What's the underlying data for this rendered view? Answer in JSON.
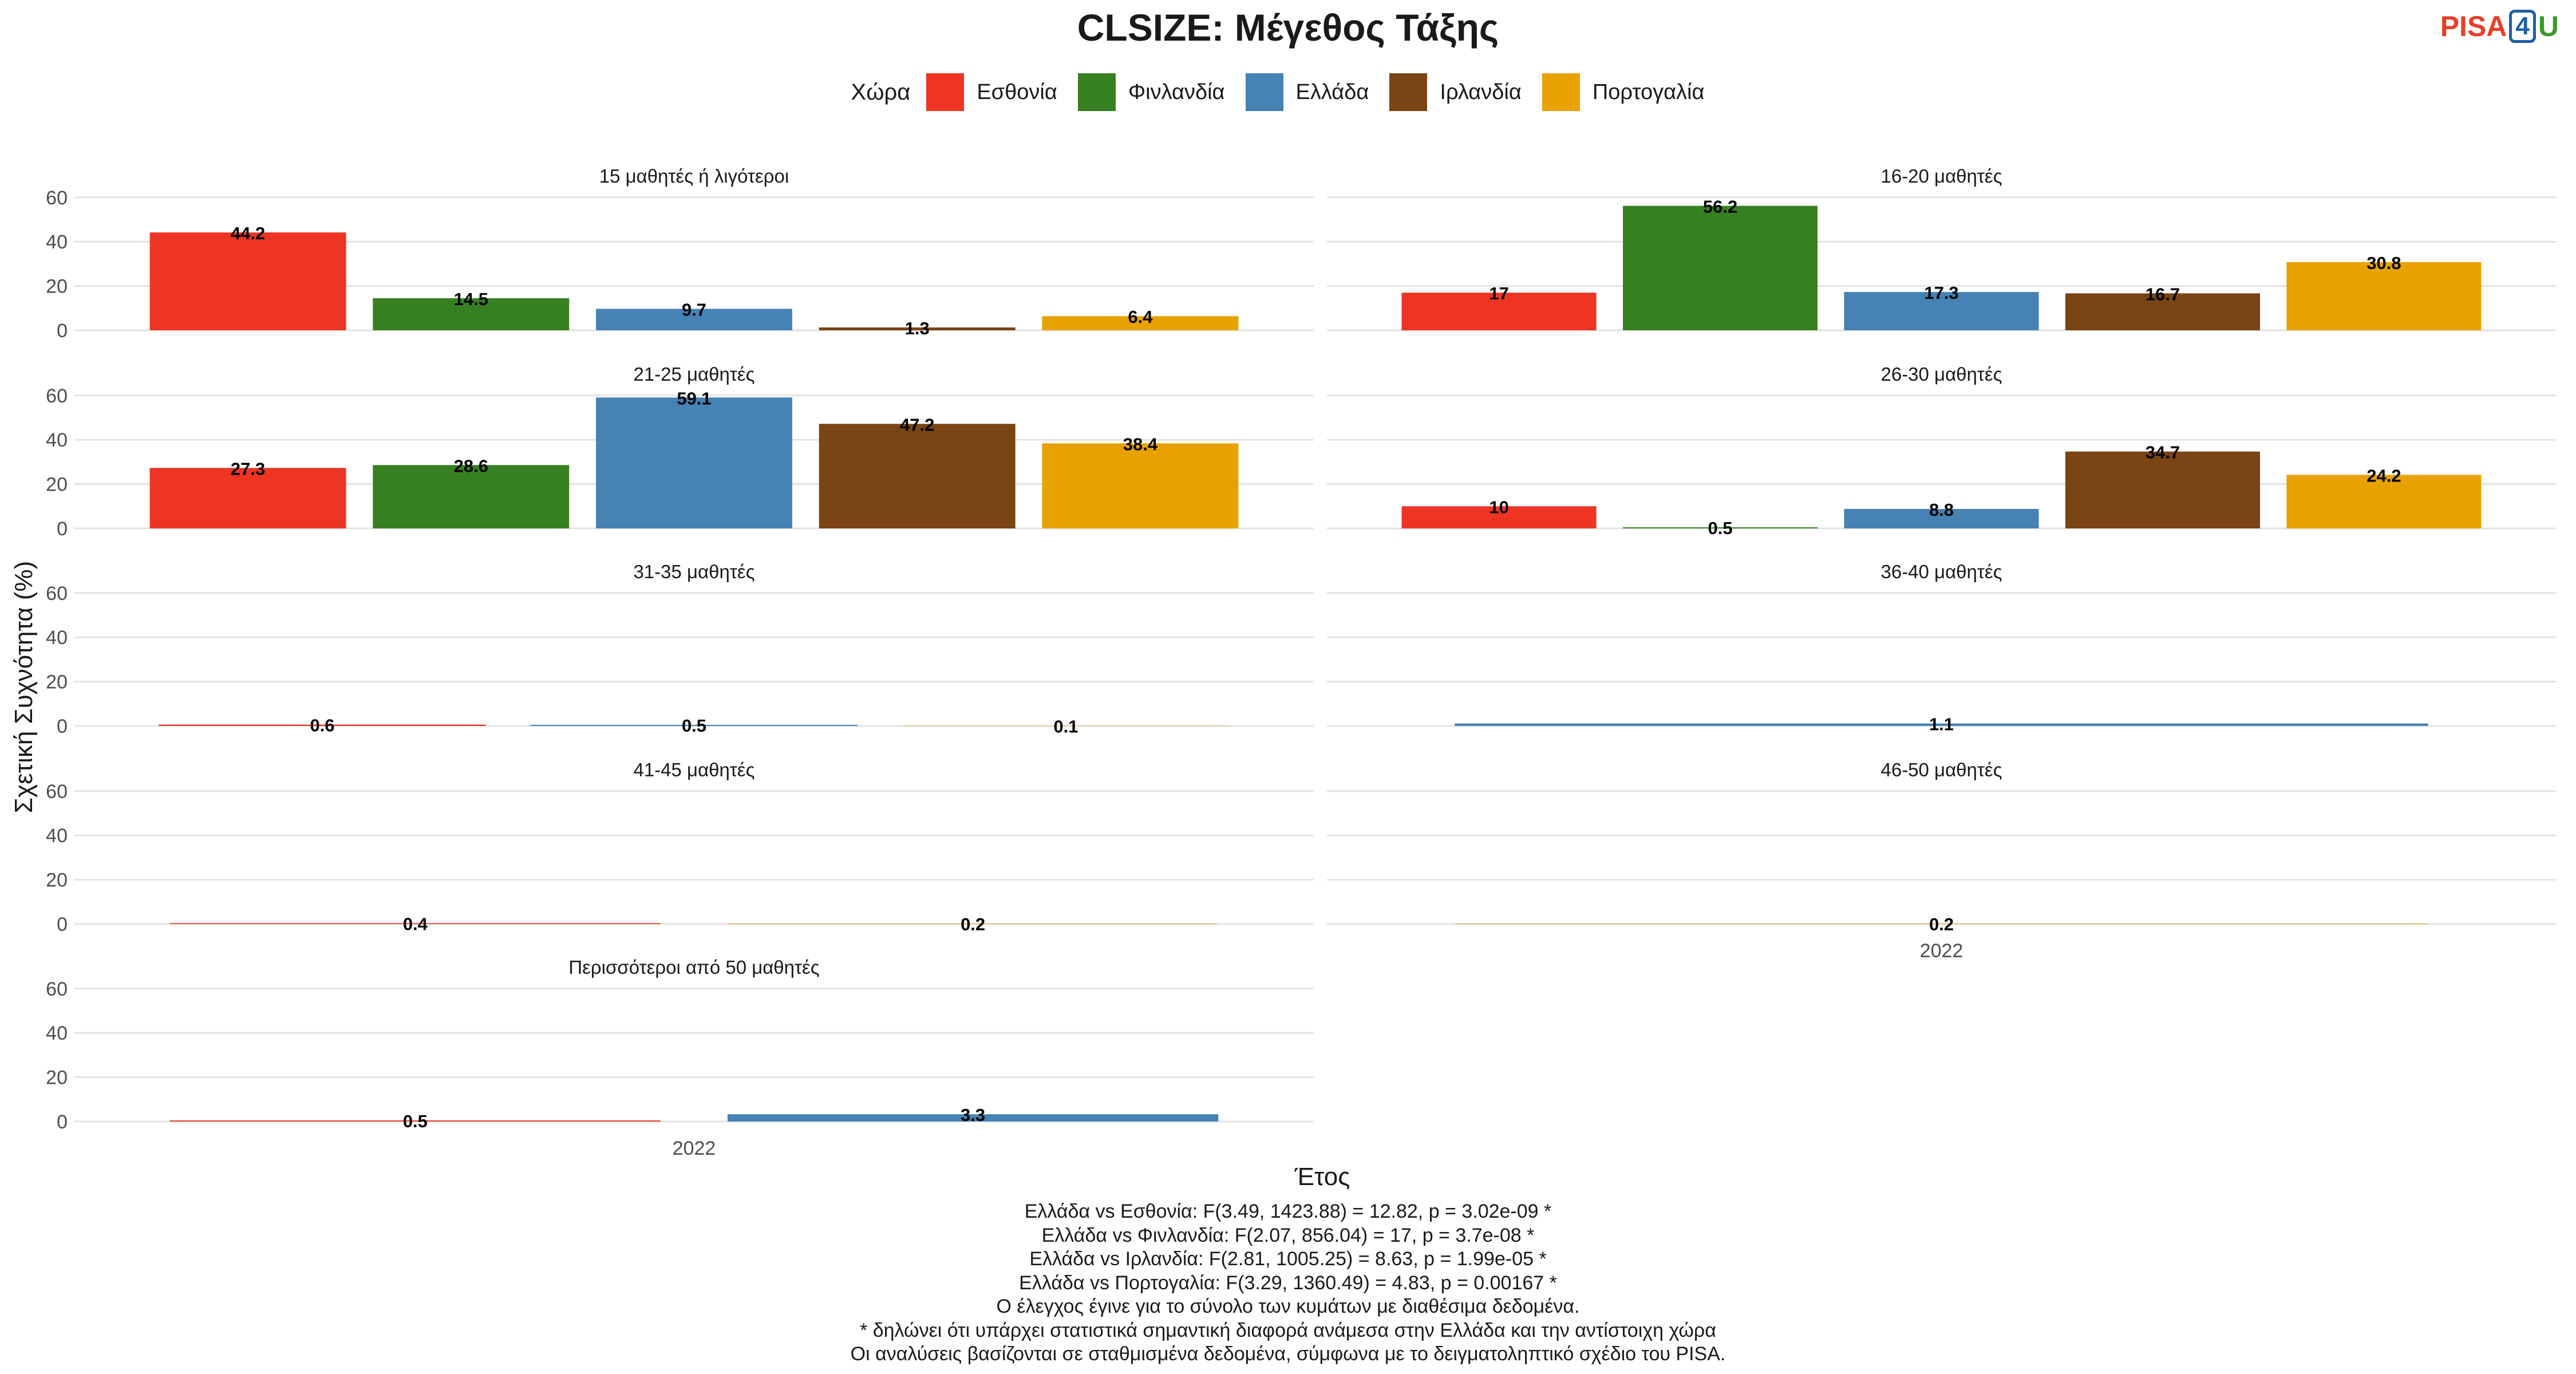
{
  "chart_data": {
    "type": "bar",
    "title": "CLSIZE: Μέγεθος Τάξης",
    "xlabel": "Έτος",
    "ylabel": "Σχετική Συχνότητα (%)",
    "legend_title": "Χώρα",
    "legend_position": "top",
    "ylim": [
      0,
      65
    ],
    "yticks": [
      0,
      20,
      40,
      60
    ],
    "grid": true,
    "x_tick_label": "2022",
    "countries": [
      {
        "name": "Εσθονία",
        "color": "#EE3524"
      },
      {
        "name": "Φινλανδία",
        "color": "#378022"
      },
      {
        "name": "Ελλάδα",
        "color": "#4682B4"
      },
      {
        "name": "Ιρλανδία",
        "color": "#7A4414"
      },
      {
        "name": "Πορτογαλία",
        "color": "#E8A200"
      }
    ],
    "panels": [
      {
        "label": "15 μαθητές ή λιγότεροι",
        "bars": [
          {
            "country": 0,
            "value": 44.2,
            "label": "44.2"
          },
          {
            "country": 1,
            "value": 14.5,
            "label": "14.5"
          },
          {
            "country": 2,
            "value": 9.7,
            "label": "9.7"
          },
          {
            "country": 3,
            "value": 1.3,
            "label": "1.3"
          },
          {
            "country": 4,
            "value": 6.4,
            "label": "6.4"
          }
        ]
      },
      {
        "label": "16-20 μαθητές",
        "bars": [
          {
            "country": 0,
            "value": 17,
            "label": "17"
          },
          {
            "country": 1,
            "value": 56.2,
            "label": "56.2"
          },
          {
            "country": 2,
            "value": 17.3,
            "label": "17.3"
          },
          {
            "country": 3,
            "value": 16.7,
            "label": "16.7"
          },
          {
            "country": 4,
            "value": 30.8,
            "label": "30.8"
          }
        ]
      },
      {
        "label": "21-25 μαθητές",
        "bars": [
          {
            "country": 0,
            "value": 27.3,
            "label": "27.3"
          },
          {
            "country": 1,
            "value": 28.6,
            "label": "28.6"
          },
          {
            "country": 2,
            "value": 59.1,
            "label": "59.1"
          },
          {
            "country": 3,
            "value": 47.2,
            "label": "47.2"
          },
          {
            "country": 4,
            "value": 38.4,
            "label": "38.4"
          }
        ]
      },
      {
        "label": "26-30 μαθητές",
        "bars": [
          {
            "country": 0,
            "value": 10,
            "label": "10"
          },
          {
            "country": 1,
            "value": 0.5,
            "label": "0.5"
          },
          {
            "country": 2,
            "value": 8.8,
            "label": "8.8"
          },
          {
            "country": 3,
            "value": 34.7,
            "label": "34.7"
          },
          {
            "country": 4,
            "value": 24.2,
            "label": "24.2"
          }
        ]
      },
      {
        "label": "31-35 μαθητές",
        "bars": [
          {
            "country": 0,
            "value": 0.6,
            "label": "0.6"
          },
          {
            "country": 2,
            "value": 0.5,
            "label": "0.5"
          },
          {
            "country": 4,
            "value": 0.1,
            "label": "0.1"
          }
        ]
      },
      {
        "label": "36-40 μαθητές",
        "bars": [
          {
            "country": 2,
            "value": 1.1,
            "label": "1.1"
          }
        ]
      },
      {
        "label": "41-45 μαθητές",
        "bars": [
          {
            "country": 0,
            "value": 0.4,
            "label": "0.4"
          },
          {
            "country": 4,
            "value": 0.2,
            "label": "0.2"
          }
        ]
      },
      {
        "label": "46-50 μαθητές",
        "bars": [
          {
            "country": 4,
            "value": 0.2,
            "label": "0.2"
          }
        ]
      },
      {
        "label": "Περισσότεροι από 50 μαθητές",
        "bars": [
          {
            "country": 0,
            "value": 0.5,
            "label": "0.5"
          },
          {
            "country": 2,
            "value": 3.3,
            "label": "3.3"
          }
        ]
      }
    ]
  },
  "logo": {
    "part1": "PISA",
    "part2": "4",
    "part3": "U"
  },
  "footnotes": [
    "Ελλάδα vs Εσθονία: F(3.49, 1423.88) = 12.82, p = 3.02e-09 *",
    "Ελλάδα vs Φινλανδία: F(2.07, 856.04) = 17, p = 3.7e-08 *",
    "Ελλάδα vs Ιρλανδία: F(2.81, 1005.25) = 8.63, p = 1.99e-05 *",
    "Ελλάδα vs Πορτογαλία: F(3.29, 1360.49) = 4.83, p = 0.00167 *",
    "Ο έλεγχος έγινε για το σύνολο των κυμάτων με διαθέσιμα δεδομένα.",
    "* δηλώνει ότι υπάρχει στατιστικά σημαντική διαφορά ανάμεσα στην Ελλάδα και την αντίστοιχη χώρα",
    "Οι αναλύσεις βασίζονται σε σταθμισμένα δεδομένα, σύμφωνα με το δειγματοληπτικό σχέδιο του PISA."
  ]
}
